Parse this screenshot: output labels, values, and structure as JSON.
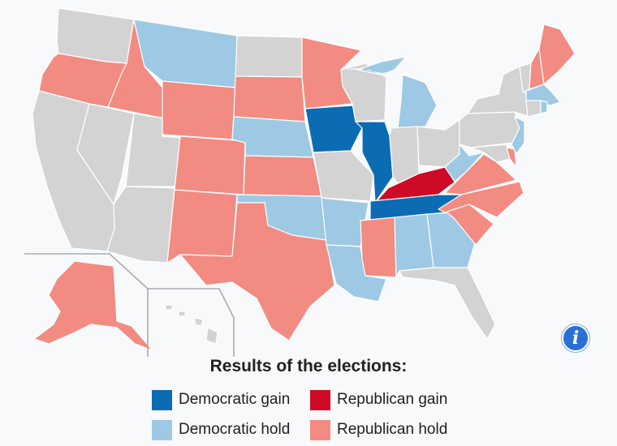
{
  "legend": {
    "title": "Results of the elections:",
    "items": [
      {
        "key": "dem_gain",
        "label": "Democratic gain",
        "color": "#0b6cb4"
      },
      {
        "key": "rep_gain",
        "label": "Republican gain",
        "color": "#cf0a26"
      },
      {
        "key": "dem_hold",
        "label": "Democratic hold",
        "color": "#9ec9e4"
      },
      {
        "key": "rep_hold",
        "label": "Republican hold",
        "color": "#f28b82"
      }
    ]
  },
  "colors": {
    "no_election": "#d3d3d3",
    "border": "#ffffff",
    "info_button": "#2a6fd6"
  },
  "info_button": {
    "icon": "info-icon",
    "glyph": "i"
  },
  "states": {
    "WA": "no_election",
    "OR": "rep_hold",
    "CA": "no_election",
    "ID": "rep_hold",
    "NV": "no_election",
    "UT": "no_election",
    "AZ": "no_election",
    "MT": "dem_hold",
    "WY": "rep_hold",
    "CO": "rep_hold",
    "NM": "rep_hold",
    "ND": "no_election",
    "SD": "rep_hold",
    "NE": "dem_hold",
    "KS": "rep_hold",
    "OK": "dem_hold",
    "TX": "rep_hold",
    "MN": "rep_hold",
    "IA": "dem_gain",
    "MO": "no_election",
    "AR": "dem_hold",
    "LA": "dem_hold",
    "WI": "no_election",
    "IL": "dem_gain",
    "MI": "dem_hold",
    "IN": "no_election",
    "OH": "no_election",
    "KY": "rep_gain",
    "TN": "dem_gain",
    "MS": "rep_hold",
    "AL": "dem_hold",
    "GA": "dem_hold",
    "FL": "no_election",
    "SC": "rep_hold",
    "NC": "rep_hold",
    "VA": "rep_hold",
    "WV": "dem_hold",
    "PA": "no_election",
    "NY": "no_election",
    "VT": "no_election",
    "NH": "rep_hold",
    "ME": "rep_hold",
    "MA": "dem_hold",
    "RI": "dem_hold",
    "CT": "no_election",
    "NJ": "dem_hold",
    "DE": "rep_hold",
    "MD": "no_election",
    "AK": "rep_hold",
    "HI": "no_election"
  }
}
